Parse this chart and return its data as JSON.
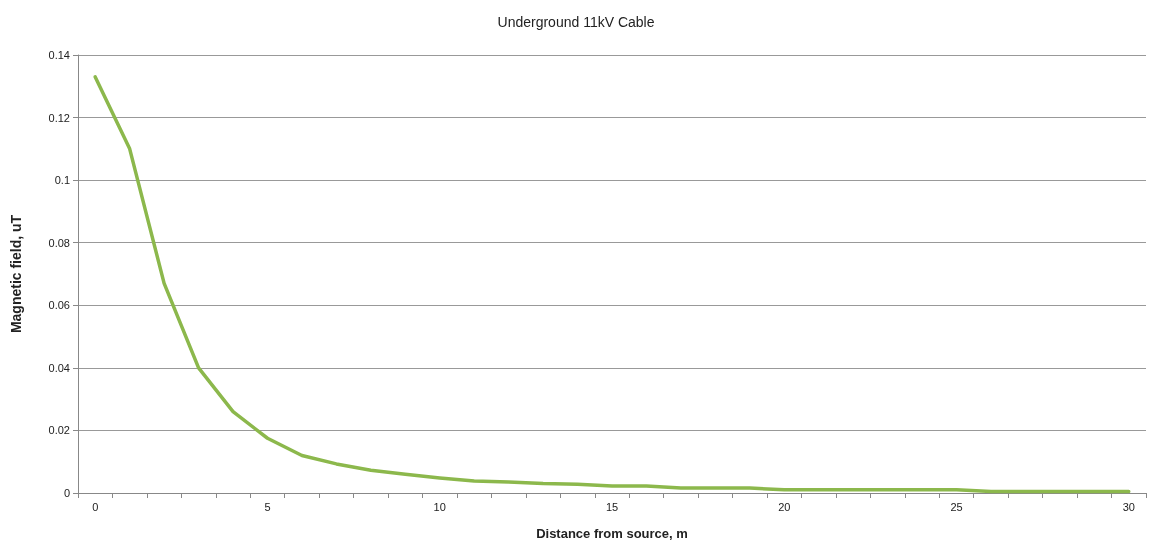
{
  "chart_data": {
    "type": "line",
    "title": "Underground 11kV Cable",
    "xlabel": "Distance from source, m",
    "ylabel": "Magnetic field, uT",
    "categories": [
      "0",
      null,
      null,
      null,
      null,
      "5",
      null,
      null,
      null,
      null,
      "10",
      null,
      null,
      null,
      null,
      "15",
      null,
      null,
      null,
      null,
      "20",
      null,
      null,
      null,
      null,
      "25",
      null,
      null,
      null,
      null,
      "30"
    ],
    "series": [
      {
        "color": "#8cb84c",
        "values": [
          0.133,
          0.11,
          0.067,
          0.04,
          0.026,
          0.0175,
          0.012,
          0.0093,
          0.0073,
          0.006,
          0.0048,
          0.0038,
          0.0035,
          0.003,
          0.0028,
          0.0022,
          0.0022,
          0.0016,
          0.0016,
          0.0016,
          0.001,
          0.001,
          0.001,
          0.001,
          0.001,
          0.001,
          0.0005,
          0.0005,
          0.0005,
          0.0005,
          0.0005
        ]
      }
    ],
    "ylim": [
      0,
      0.14
    ],
    "yticks": [
      0,
      0.02,
      0.04,
      0.06,
      0.08,
      0.1,
      0.12,
      0.14
    ],
    "grid": "y",
    "marker": "none",
    "line_style": "solid"
  }
}
